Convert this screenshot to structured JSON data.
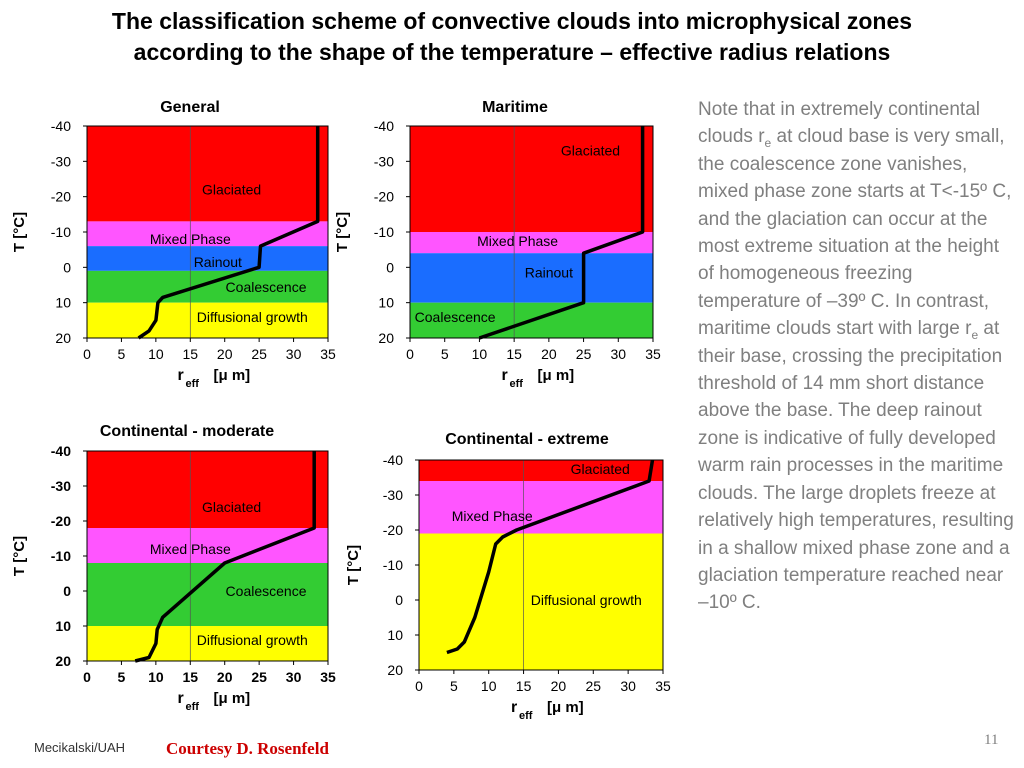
{
  "title": {
    "line1": "The classification scheme of convective clouds into microphysical zones",
    "line2": "according to the shape of the temperature – effective radius relations"
  },
  "note": {
    "part1": "Note that in extremely continental clouds r",
    "sub1": "e",
    "part2": " at cloud base is very small, the coalescence zone vanishes, mixed phase zone starts at T<-15º C, and the glaciation can occur at the most extreme situation at the height of homogeneous freezing temperature of –39º C. In contrast, maritime clouds start with large r",
    "sub2": "e",
    "part3": " at their base, crossing the precipitation threshold of 14 mm short distance above the base. The deep rainout zone is indicative of fully developed warm rain processes in the maritime clouds. The large droplets freeze at relatively high temperatures, resulting in a shallow mixed phase zone and a glaciation temperature reached near –10º C."
  },
  "footer": {
    "author": "Mecikalski/UAH",
    "credit": "Courtesy D. Rosenfeld",
    "page": "11"
  },
  "colors": {
    "glaciated": "#ff0000",
    "mixed_phase": "#ff55ff",
    "rainout": "#1a6dff",
    "coalescence": "#33cc33",
    "diffusional": "#ffff00",
    "curve": "#000000"
  },
  "chart_data": [
    {
      "type": "area",
      "title": "General",
      "xlabel": "r",
      "xlabel_sub": "eff",
      "xlabel_unit": "[μ m]",
      "ylabel": "T [°C]",
      "xlim": [
        0,
        35
      ],
      "ylim": [
        20,
        -40
      ],
      "xticks": [
        0,
        5,
        10,
        15,
        20,
        25,
        30,
        35
      ],
      "yticks": [
        -40,
        -30,
        -20,
        -10,
        0,
        10,
        20
      ],
      "bold_ticks": false,
      "zones": [
        {
          "name": "Glaciated",
          "from": -40,
          "to": -13,
          "label_x": 21,
          "label_y": -22
        },
        {
          "name": "Mixed Phase",
          "from": -13,
          "to": -6,
          "label_x": 15,
          "label_y": -8
        },
        {
          "name": "Rainout",
          "from": -6,
          "to": 1,
          "label_x": 19,
          "label_y": -1.5
        },
        {
          "name": "Coalescence",
          "from": 1,
          "to": 10,
          "label_x": 26,
          "label_y": 5.5
        },
        {
          "name": "Diffusional growth",
          "from": 10,
          "to": 20,
          "label_x": 24,
          "label_y": 14
        }
      ],
      "curve": [
        [
          7.5,
          20
        ],
        [
          9,
          18
        ],
        [
          10,
          15
        ],
        [
          10.3,
          10
        ],
        [
          11,
          8.5
        ],
        [
          25,
          0
        ],
        [
          25.2,
          -6
        ],
        [
          33.5,
          -13
        ],
        [
          33.5,
          -40
        ]
      ]
    },
    {
      "type": "area",
      "title": "Maritime",
      "xlabel": "r",
      "xlabel_sub": "eff",
      "xlabel_unit": "[μ m]",
      "ylabel": "T [°C]",
      "xlim": [
        0,
        35
      ],
      "ylim": [
        20,
        -40
      ],
      "xticks": [
        0,
        5,
        10,
        15,
        20,
        25,
        30,
        35
      ],
      "yticks": [
        -40,
        -30,
        -20,
        -10,
        0,
        10,
        20
      ],
      "bold_ticks": false,
      "zones": [
        {
          "name": "Glaciated",
          "from": -40,
          "to": -10,
          "label_x": 26,
          "label_y": -33
        },
        {
          "name": "Mixed Phase",
          "from": -10,
          "to": -4,
          "label_x": 15.5,
          "label_y": -7.5
        },
        {
          "name": "Rainout",
          "from": -4,
          "to": 10,
          "label_x": 20,
          "label_y": 1.5
        },
        {
          "name": "Coalescence",
          "from": 10,
          "to": 20,
          "label_x": 6.5,
          "label_y": 14
        }
      ],
      "curve": [
        [
          10,
          20
        ],
        [
          25,
          10
        ],
        [
          25,
          -4
        ],
        [
          33.5,
          -10
        ],
        [
          33.5,
          -40
        ]
      ]
    },
    {
      "type": "area",
      "title": "Continental - moderate",
      "xlabel": "r",
      "xlabel_sub": "eff",
      "xlabel_unit": "[μ m]",
      "ylabel": "T [°C]",
      "xlim": [
        0,
        35
      ],
      "ylim": [
        20,
        -40
      ],
      "xticks": [
        0,
        5,
        10,
        15,
        20,
        25,
        30,
        35
      ],
      "yticks": [
        -40,
        -30,
        -20,
        -10,
        0,
        10,
        20
      ],
      "bold_ticks": true,
      "zones": [
        {
          "name": "Glaciated",
          "from": -40,
          "to": -18,
          "label_x": 21,
          "label_y": -24
        },
        {
          "name": "Mixed Phase",
          "from": -18,
          "to": -8,
          "label_x": 15,
          "label_y": -12
        },
        {
          "name": "Coalescence",
          "from": -8,
          "to": 10,
          "label_x": 26,
          "label_y": 0
        },
        {
          "name": "Diffusional growth",
          "from": 10,
          "to": 20,
          "label_x": 24,
          "label_y": 14
        }
      ],
      "curve": [
        [
          7,
          20
        ],
        [
          9,
          19
        ],
        [
          10,
          15
        ],
        [
          10.2,
          11
        ],
        [
          11,
          7.5
        ],
        [
          20,
          -8
        ],
        [
          33,
          -18
        ],
        [
          33,
          -40
        ]
      ]
    },
    {
      "type": "area",
      "title": "Continental - extreme",
      "xlabel": "r",
      "xlabel_sub": "eff",
      "xlabel_unit": "[μ m]",
      "ylabel": "T [°C]",
      "xlim": [
        0,
        35
      ],
      "ylim": [
        20,
        -40
      ],
      "xticks": [
        0,
        5,
        10,
        15,
        20,
        25,
        30,
        35
      ],
      "yticks": [
        -40,
        -30,
        -20,
        -10,
        0,
        10,
        20
      ],
      "bold_ticks": false,
      "zones": [
        {
          "name": "Glaciated",
          "from": -40,
          "to": -34,
          "label_x": 26,
          "label_y": -37.5
        },
        {
          "name": "Mixed Phase",
          "from": -34,
          "to": -19,
          "label_x": 10.5,
          "label_y": -24
        },
        {
          "name": "Diffusional growth",
          "from": -19,
          "to": 20,
          "label_x": 24,
          "label_y": 0
        }
      ],
      "curve": [
        [
          4,
          15
        ],
        [
          5.5,
          14
        ],
        [
          6.5,
          12
        ],
        [
          8,
          5
        ],
        [
          10,
          -8
        ],
        [
          11,
          -16
        ],
        [
          12,
          -18
        ],
        [
          14,
          -20
        ],
        [
          33,
          -34
        ],
        [
          33.5,
          -40
        ]
      ]
    }
  ]
}
